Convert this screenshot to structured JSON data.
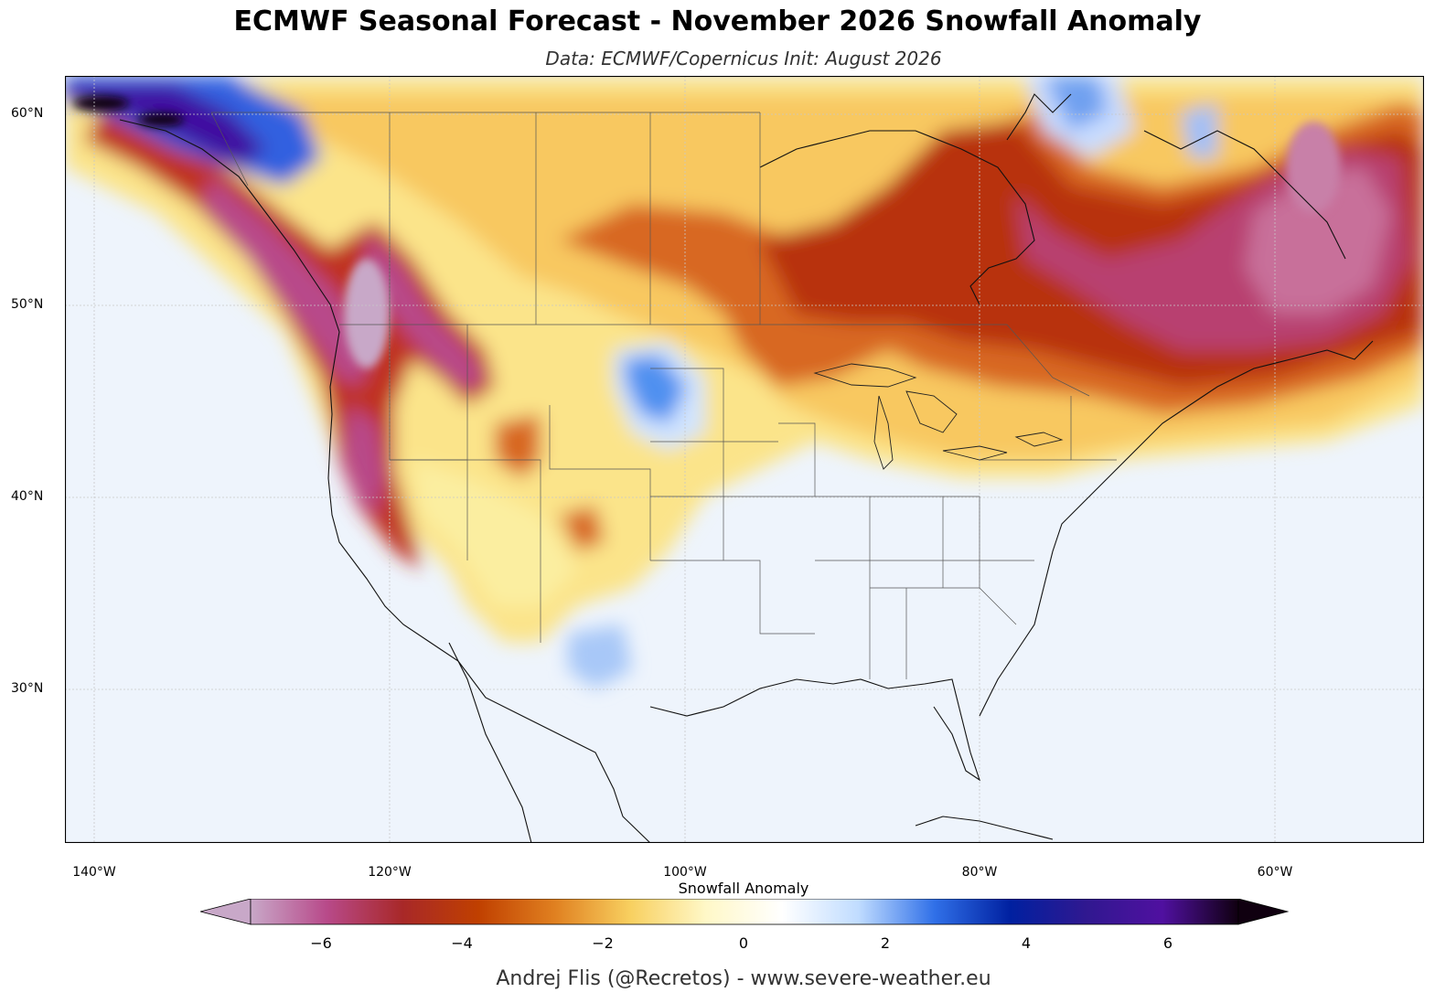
{
  "header": {
    "title": "ECMWF Seasonal Forecast - November 2026 Snowfall Anomaly",
    "subtitle": "Data: ECMWF/Copernicus  Init: August 2026"
  },
  "axes": {
    "lat_labels": [
      "60°N",
      "50°N",
      "40°N",
      "30°N"
    ],
    "lon_labels": [
      "140°W",
      "120°W",
      "100°W",
      "80°W",
      "60°W"
    ],
    "lat_range": [
      22,
      62
    ],
    "lon_range": [
      -142,
      -50
    ]
  },
  "colorbar": {
    "label": "Snowfall Anomaly",
    "ticks": [
      "−6",
      "−4",
      "−2",
      "0",
      "2",
      "4",
      "6"
    ],
    "range": [
      -7,
      7
    ],
    "colors": [
      "#c8a8c8",
      "#b84a8a",
      "#a82828",
      "#c04000",
      "#e08020",
      "#f8d060",
      "#fff8c8",
      "#ffffff",
      "#c0dcff",
      "#3070e8",
      "#0020a0",
      "#301890",
      "#5010a0",
      "#100010"
    ]
  },
  "credit": "Andrej Flis (@Recretos) - www.severe-weather.eu"
}
